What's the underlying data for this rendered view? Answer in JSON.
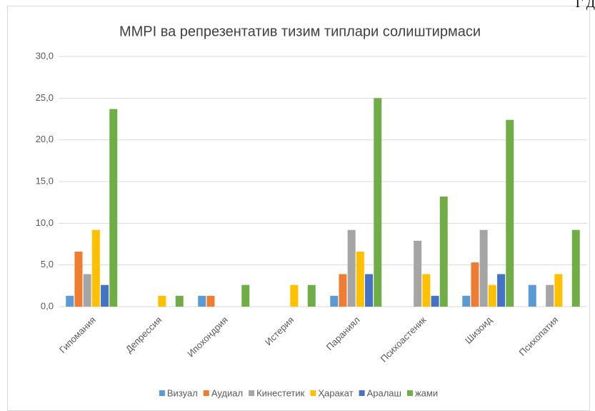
{
  "corner_text": "Г Д",
  "chart_data": {
    "type": "bar",
    "title": "MMPI ва репрезентатив тизим типлари солиштирмаси",
    "categories": [
      "Гипомания",
      "Депрессия",
      "Ипохондрия",
      "Истерия",
      "Параниял",
      "Психоастеник",
      "Шизоид",
      "Психопатия"
    ],
    "series": [
      {
        "name": "Визуал",
        "color": "#5b9bd5",
        "values": [
          1.3,
          0,
          1.3,
          0,
          1.3,
          0,
          1.3,
          2.6
        ]
      },
      {
        "name": "Аудиал",
        "color": "#ed7d31",
        "values": [
          6.6,
          0,
          1.3,
          0,
          3.9,
          0,
          5.3,
          0
        ]
      },
      {
        "name": "Кинестетик",
        "color": "#a5a5a5",
        "values": [
          3.9,
          0,
          0,
          0,
          9.2,
          7.9,
          9.2,
          2.6
        ]
      },
      {
        "name": "Ҳаракат",
        "color": "#ffc000",
        "values": [
          9.2,
          1.3,
          0,
          2.6,
          6.6,
          3.9,
          2.6,
          3.9
        ]
      },
      {
        "name": "Аралаш",
        "color": "#4472c4",
        "values": [
          2.6,
          0,
          0,
          0,
          3.9,
          1.3,
          3.9,
          0
        ]
      },
      {
        "name": "жами",
        "color": "#70ad47",
        "values": [
          23.7,
          1.3,
          2.6,
          2.6,
          25.0,
          13.2,
          22.4,
          9.2
        ]
      }
    ],
    "ylim": [
      0,
      30
    ],
    "yticks": [
      {
        "value": 0,
        "label": "0,0"
      },
      {
        "value": 5,
        "label": "5,0"
      },
      {
        "value": 10,
        "label": "10,0"
      },
      {
        "value": 15,
        "label": "15,0"
      },
      {
        "value": 20,
        "label": "20,0"
      },
      {
        "value": 25,
        "label": "25,0"
      },
      {
        "value": 30,
        "label": "30,0"
      }
    ],
    "grid": true,
    "legend": "bottom"
  }
}
